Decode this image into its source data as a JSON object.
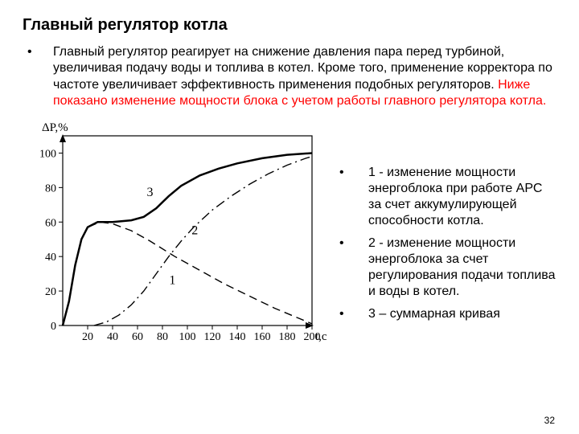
{
  "title": "Главный регулятор котла",
  "paragraph": {
    "black": "Главный регулятор реагирует на снижение давления пара перед турбиной, увеличивая подачу воды и топлива в котел. Кроме того, применение корректора по частоте увеличивает эффективность применения подобных регуляторов. ",
    "red": "Ниже показано изменение мощности блока с учетом работы главного регулятора котла."
  },
  "legend": {
    "items": [
      "1 - изменение мощности энергоблока при работе АРС за счет аккумулирующей способности котла.",
      "2 - изменение мощности энергоблока за счет регулирования подачи топлива и воды в котел.",
      "3 – суммарная кривая"
    ]
  },
  "chart": {
    "type": "line",
    "ylabel": "ΔP,%",
    "xlabel": "t,c",
    "xlim": [
      0,
      200
    ],
    "ylim": [
      0,
      110
    ],
    "xticks": [
      20,
      40,
      60,
      80,
      100,
      120,
      140,
      160,
      180,
      200
    ],
    "yticks": [
      0,
      20,
      40,
      60,
      80,
      100
    ],
    "axis_color": "#000000",
    "grid_color": "#000000",
    "background": "#ffffff",
    "line_width_main": 2.5,
    "line_width_thin": 1.4,
    "label_fontsize": 15,
    "tick_fontsize": 14,
    "curve_label_fontsize": 16,
    "series": [
      {
        "id": "1",
        "label": "1",
        "label_pos": {
          "x": 88,
          "y": 24
        },
        "style": "dashed",
        "width": 1.4,
        "color": "#000000",
        "points": [
          {
            "x": 0,
            "y": 0
          },
          {
            "x": 5,
            "y": 14
          },
          {
            "x": 10,
            "y": 35
          },
          {
            "x": 15,
            "y": 50
          },
          {
            "x": 20,
            "y": 57
          },
          {
            "x": 30,
            "y": 60
          },
          {
            "x": 40,
            "y": 59
          },
          {
            "x": 55,
            "y": 55
          },
          {
            "x": 70,
            "y": 49
          },
          {
            "x": 90,
            "y": 40
          },
          {
            "x": 110,
            "y": 32
          },
          {
            "x": 130,
            "y": 24
          },
          {
            "x": 150,
            "y": 17
          },
          {
            "x": 170,
            "y": 10
          },
          {
            "x": 190,
            "y": 4
          },
          {
            "x": 200,
            "y": 1
          }
        ]
      },
      {
        "id": "2",
        "label": "2",
        "label_pos": {
          "x": 106,
          "y": 53
        },
        "style": "dashdot",
        "width": 1.4,
        "color": "#000000",
        "points": [
          {
            "x": 25,
            "y": 0
          },
          {
            "x": 35,
            "y": 2
          },
          {
            "x": 45,
            "y": 6
          },
          {
            "x": 55,
            "y": 12
          },
          {
            "x": 65,
            "y": 20
          },
          {
            "x": 75,
            "y": 30
          },
          {
            "x": 85,
            "y": 40
          },
          {
            "x": 95,
            "y": 49
          },
          {
            "x": 105,
            "y": 57
          },
          {
            "x": 120,
            "y": 67
          },
          {
            "x": 135,
            "y": 75
          },
          {
            "x": 150,
            "y": 82
          },
          {
            "x": 165,
            "y": 88
          },
          {
            "x": 180,
            "y": 93
          },
          {
            "x": 195,
            "y": 97
          },
          {
            "x": 200,
            "y": 98
          }
        ]
      },
      {
        "id": "3",
        "label": "3",
        "label_pos": {
          "x": 70,
          "y": 75
        },
        "style": "solid",
        "width": 2.5,
        "color": "#000000",
        "points": [
          {
            "x": 0,
            "y": 0
          },
          {
            "x": 5,
            "y": 14
          },
          {
            "x": 10,
            "y": 35
          },
          {
            "x": 15,
            "y": 50
          },
          {
            "x": 20,
            "y": 57
          },
          {
            "x": 28,
            "y": 60
          },
          {
            "x": 40,
            "y": 60
          },
          {
            "x": 55,
            "y": 61
          },
          {
            "x": 65,
            "y": 63
          },
          {
            "x": 75,
            "y": 68
          },
          {
            "x": 85,
            "y": 75
          },
          {
            "x": 95,
            "y": 81
          },
          {
            "x": 110,
            "y": 87
          },
          {
            "x": 125,
            "y": 91
          },
          {
            "x": 140,
            "y": 94
          },
          {
            "x": 160,
            "y": 97
          },
          {
            "x": 180,
            "y": 99
          },
          {
            "x": 200,
            "y": 100
          }
        ]
      }
    ]
  },
  "page": 32
}
